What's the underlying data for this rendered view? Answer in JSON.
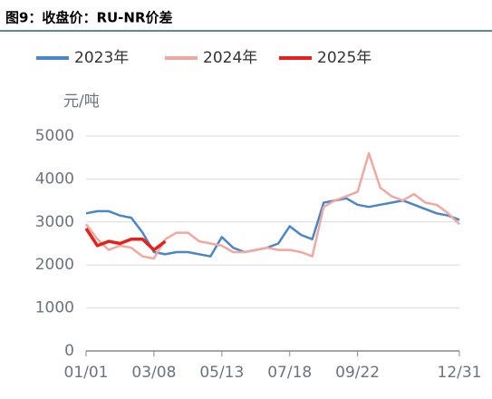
{
  "chart_data": {
    "type": "line",
    "title": "图9：收盘价：RU-NR价差",
    "y_label": "元/吨",
    "categories": [
      "01/01",
      null,
      null,
      null,
      null,
      null,
      "03/08",
      null,
      null,
      null,
      null,
      null,
      "05/13",
      null,
      null,
      null,
      null,
      null,
      "07/18",
      null,
      null,
      null,
      null,
      null,
      "09/22",
      null,
      null,
      null,
      null,
      null,
      null,
      null,
      null,
      "12/31"
    ],
    "series": [
      {
        "name": "2023年",
        "color": "#4a86c8",
        "values": [
          3200,
          3250,
          3250,
          3150,
          3100,
          2750,
          2300,
          2250,
          2300,
          2300,
          2250,
          2200,
          2650,
          2400,
          2300,
          2350,
          2400,
          2500,
          2900,
          2700,
          2600,
          3450,
          3500,
          3550,
          3400,
          3350,
          3400,
          3450,
          3500,
          3400,
          3300,
          3200,
          3150,
          3050
        ]
      },
      {
        "name": "2024年",
        "color": "#f0a8a0",
        "values": [
          2950,
          2600,
          2350,
          2450,
          2400,
          2200,
          2150,
          2600,
          2750,
          2750,
          2550,
          2500,
          2450,
          2300,
          2300,
          2350,
          2400,
          2350,
          2350,
          2300,
          2200,
          3350,
          3500,
          3600,
          3700,
          4600,
          3800,
          3600,
          3500,
          3650,
          3450,
          3400,
          3200,
          2950
        ]
      },
      {
        "name": "2025年",
        "color": "#e8201a",
        "values": [
          2850,
          2450,
          2550,
          2500,
          2600,
          2600,
          2350,
          2550,
          null,
          null,
          null,
          null,
          null,
          null,
          null,
          null,
          null,
          null,
          null,
          null,
          null,
          null,
          null,
          null,
          null,
          null,
          null,
          null,
          null,
          null,
          null,
          null,
          null,
          null
        ]
      }
    ],
    "ylim": [
      0,
      5000
    ],
    "yticks": [
      0,
      1000,
      2000,
      3000,
      4000,
      5000
    ],
    "grid": true
  }
}
